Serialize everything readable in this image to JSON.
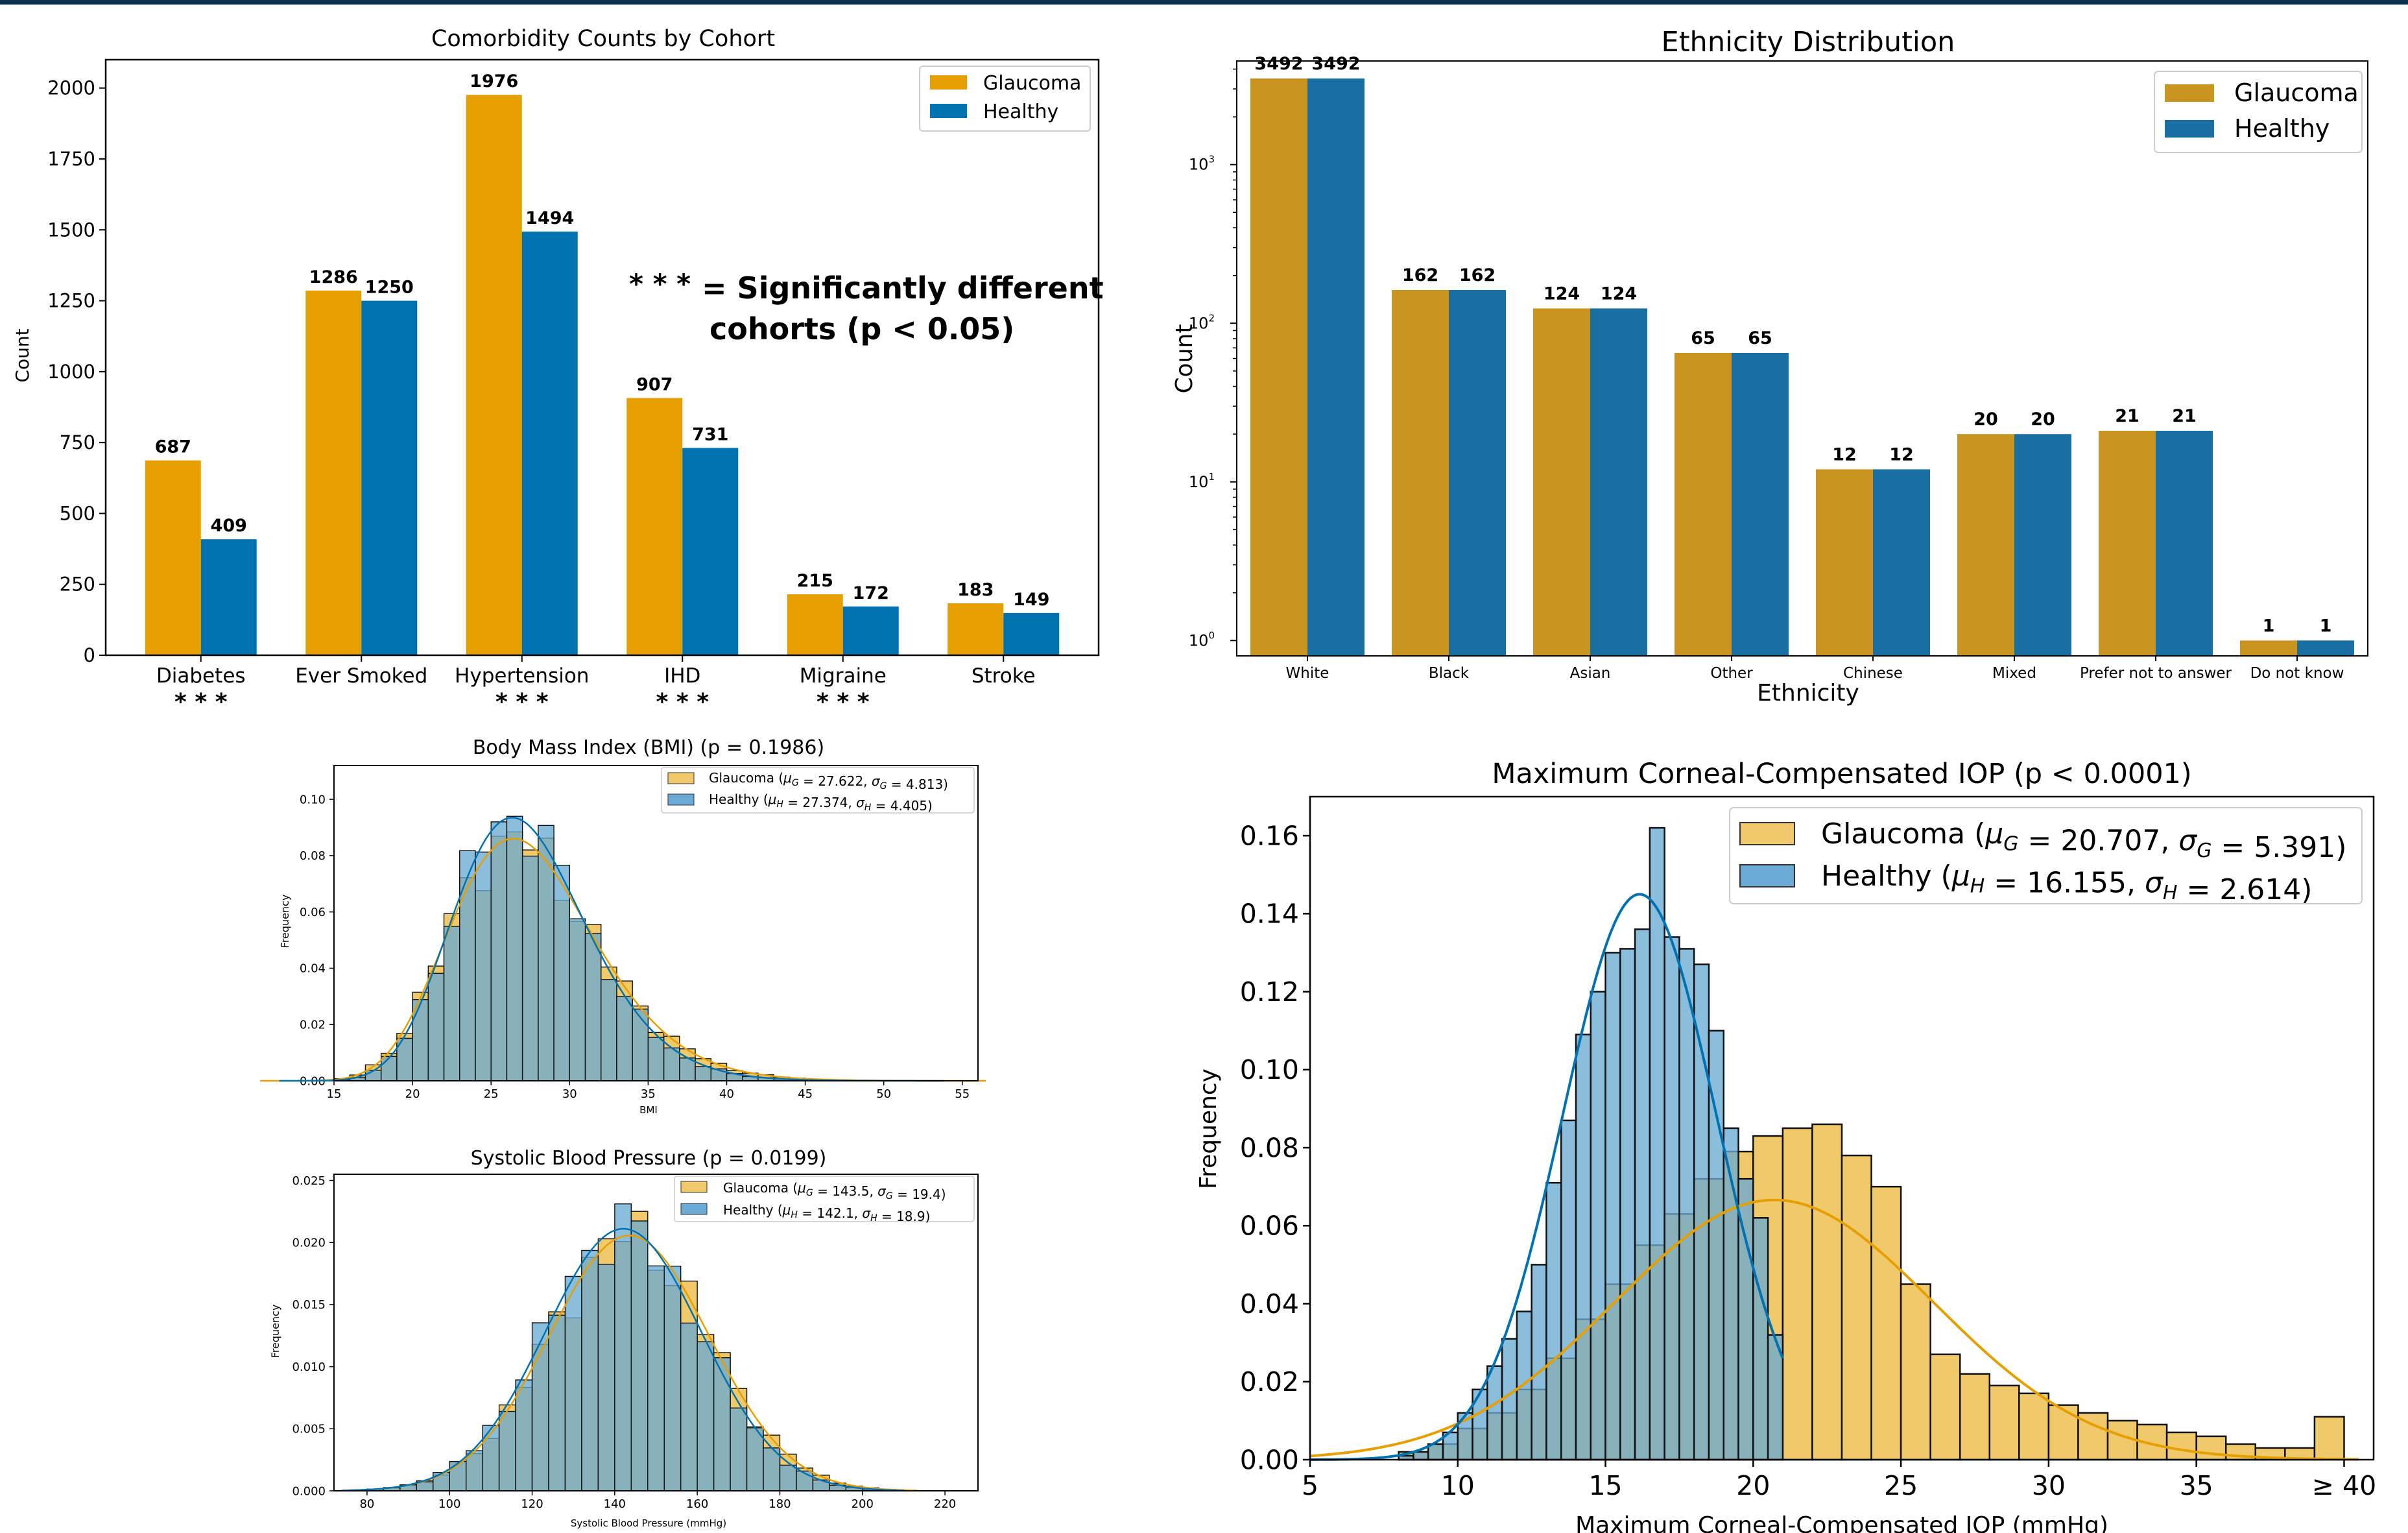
{
  "colors": {
    "glaucoma": "#E69F00",
    "healthy": "#0072B2",
    "glaucoma_eth": "#C9941F",
    "healthy_eth": "#1A6FA2",
    "glaucoma_hist": "#F0C96A",
    "healthy_hist": "#6AAAD4",
    "overlap": "#6B8F7C",
    "annotation": "#0b3a66",
    "topbar": "#0b2f4f"
  },
  "chart_data": [
    {
      "id": "comorbidity",
      "type": "bar",
      "title": "Comorbidity Counts by Cohort",
      "ylabel": "Count",
      "ylim": [
        0,
        2100
      ],
      "yticks": [
        0,
        250,
        500,
        750,
        1000,
        1250,
        1500,
        1750,
        2000
      ],
      "categories": [
        "Diabetes",
        "Ever Smoked",
        "Hypertension",
        "IHD",
        "Migraine",
        "Stroke"
      ],
      "series": [
        {
          "name": "Glaucoma",
          "values": [
            687,
            1286,
            1976,
            907,
            215,
            183
          ]
        },
        {
          "name": "Healthy",
          "values": [
            409,
            1250,
            1494,
            731,
            172,
            149
          ]
        }
      ],
      "significance": [
        "* * *",
        "",
        "* * *",
        "* * *",
        "* * *",
        ""
      ],
      "annotation_marker": "* * *",
      "annotation_line1": "=  Significantly different",
      "annotation_line2": "cohorts (p < 0.05)",
      "legend": "top-right"
    },
    {
      "id": "ethnicity",
      "type": "bar",
      "title": "Ethnicity Distribution",
      "xlabel": "Ethnicity",
      "ylabel": "Count",
      "yscale": "log",
      "ylim": [
        0.8,
        4500
      ],
      "ytick_labels": [
        {
          "base": "10",
          "exp": "0",
          "value": 1
        },
        {
          "base": "10",
          "exp": "1",
          "value": 10
        },
        {
          "base": "10",
          "exp": "2",
          "value": 100
        },
        {
          "base": "10",
          "exp": "3",
          "value": 1000
        }
      ],
      "categories": [
        "White",
        "Black",
        "Asian",
        "Other",
        "Chinese",
        "Mixed",
        "Prefer not to answer",
        "Do not know"
      ],
      "series": [
        {
          "name": "Glaucoma",
          "values": [
            3492,
            162,
            124,
            65,
            12,
            20,
            21,
            1
          ]
        },
        {
          "name": "Healthy",
          "values": [
            3492,
            162,
            124,
            65,
            12,
            20,
            21,
            1
          ]
        }
      ],
      "legend": "top-right"
    },
    {
      "id": "bmi",
      "type": "histogram",
      "title": "Body Mass Index (BMI) (p = 0.1986)",
      "xlabel": "BMI",
      "ylabel": "Frequency",
      "xlim": [
        15,
        56
      ],
      "ylim": [
        0,
        0.112
      ],
      "xticks": [
        15,
        20,
        25,
        30,
        35,
        40,
        45,
        50,
        55
      ],
      "yticks": [
        "0.00",
        "0.02",
        "0.04",
        "0.06",
        "0.08",
        "0.10"
      ],
      "series": [
        {
          "name": "Glaucoma",
          "legend": "Glaucoma (μ_G = 27.622, σ_G = 4.813)",
          "label_text": "Glaucoma (",
          "mu_sub": "G",
          "mu_val": " = 27.622, ",
          "sigma_sub": "G",
          "sigma_val": " = 4.813)",
          "mean": 27.622,
          "sd": 4.813
        },
        {
          "name": "Healthy",
          "legend": "Healthy (μ_H = 27.374, σ_H = 4.405)",
          "label_text": "Healthy (",
          "mu_sub": "H",
          "mu_val": " = 27.374, ",
          "sigma_sub": "H",
          "sigma_val": " = 4.405)",
          "mean": 27.374,
          "sd": 4.405
        }
      ],
      "legend": "top-right"
    },
    {
      "id": "sbp",
      "type": "histogram",
      "title": "Systolic Blood Pressure (p = 0.0199)",
      "xlabel": "Systolic Blood Pressure (mmHg)",
      "ylabel": "Frequency",
      "xlim": [
        72,
        228
      ],
      "ylim": [
        0,
        0.0255
      ],
      "xticks": [
        80,
        100,
        120,
        140,
        160,
        180,
        200,
        220
      ],
      "yticks": [
        "0.000",
        "0.005",
        "0.010",
        "0.015",
        "0.020",
        "0.025"
      ],
      "series": [
        {
          "name": "Glaucoma",
          "legend": "Glaucoma (μ_G = 143.5, σ_G = 19.4)",
          "label_text": "Glaucoma (",
          "mu_sub": "G",
          "mu_val": " = 143.5, ",
          "sigma_sub": "G",
          "sigma_val": " = 19.4)",
          "mean": 143.5,
          "sd": 19.4
        },
        {
          "name": "Healthy",
          "legend": "Healthy (μ_H = 142.1, σ_H = 18.9)",
          "label_text": "Healthy (",
          "mu_sub": "H",
          "mu_val": " = 142.1, ",
          "sigma_sub": "H",
          "sigma_val": " = 18.9)",
          "mean": 142.1,
          "sd": 18.9
        }
      ],
      "legend": "top-right"
    },
    {
      "id": "iop",
      "type": "histogram",
      "title": "Maximum Corneal-Compensated IOP (p < 0.0001)",
      "xlabel": "Maximum Corneal-Compensated IOP (mmHg)",
      "ylabel": "Frequency",
      "xlim": [
        5,
        41
      ],
      "ylim": [
        0,
        0.17
      ],
      "xticks": [
        "5",
        "10",
        "15",
        "20",
        "25",
        "30",
        "35",
        "≥ 40"
      ],
      "yticks": [
        "0.00",
        "0.02",
        "0.04",
        "0.06",
        "0.08",
        "0.10",
        "0.12",
        "0.14",
        "0.16"
      ],
      "series": [
        {
          "name": "Glaucoma",
          "legend": "Glaucoma (μ_G = 20.707, σ_G = 5.391)",
          "label_text": "Glaucoma (",
          "mu_sub": "G",
          "mu_val": " = 20.707, ",
          "sigma_sub": "G",
          "sigma_val": " = 5.391)",
          "mean": 20.707,
          "sd": 5.391,
          "bin_edges": [
            8,
            9,
            10,
            11,
            12,
            13,
            14,
            15,
            16,
            17,
            18,
            19,
            20,
            21,
            22,
            23,
            24,
            25,
            26,
            27,
            28,
            29,
            30,
            31,
            32,
            33,
            34,
            35,
            36,
            37,
            38,
            39,
            40
          ],
          "frequencies": [
            0.002,
            0.004,
            0.008,
            0.012,
            0.018,
            0.026,
            0.036,
            0.045,
            0.055,
            0.063,
            0.072,
            0.079,
            0.083,
            0.085,
            0.086,
            0.078,
            0.07,
            0.045,
            0.027,
            0.022,
            0.019,
            0.017,
            0.014,
            0.012,
            0.01,
            0.009,
            0.007,
            0.006,
            0.004,
            0.003,
            0.003,
            0.011
          ]
        },
        {
          "name": "Healthy",
          "legend": "Healthy (μ_H = 16.155, σ_H = 2.614)",
          "label_text": "Healthy (",
          "mu_sub": "H",
          "mu_val": " = 16.155, ",
          "sigma_sub": "H",
          "sigma_val": " = 2.614)",
          "mean": 16.155,
          "sd": 2.614,
          "bin_edges": [
            8,
            8.5,
            9,
            9.5,
            10,
            10.5,
            11,
            11.5,
            12,
            12.5,
            13,
            13.5,
            14,
            14.5,
            15,
            15.5,
            16,
            16.5,
            17,
            17.5,
            18,
            18.5,
            19,
            19.5,
            20,
            20.5,
            21
          ],
          "frequencies": [
            0.001,
            0.002,
            0.004,
            0.007,
            0.012,
            0.018,
            0.024,
            0.031,
            0.038,
            0.05,
            0.071,
            0.087,
            0.109,
            0.12,
            0.13,
            0.131,
            0.136,
            0.162,
            0.134,
            0.131,
            0.127,
            0.11,
            0.085,
            0.072,
            0.062,
            0.032
          ]
        }
      ],
      "legend": "top-right"
    }
  ]
}
